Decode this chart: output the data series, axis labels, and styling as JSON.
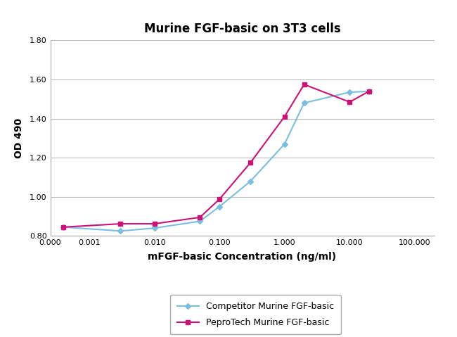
{
  "title": "Murine FGF-basic on 3T3 cells",
  "xlabel": "mFGF-basic Concentration (ng/ml)",
  "ylabel": "OD 490",
  "ylim": [
    0.8,
    1.8
  ],
  "yticks": [
    0.8,
    1.0,
    1.2,
    1.4,
    1.6,
    1.8
  ],
  "competitor_x": [
    0.0004,
    0.003,
    0.01,
    0.05,
    0.1,
    0.3,
    1.0,
    2.0,
    10.0,
    20.0
  ],
  "competitor_y": [
    0.845,
    0.825,
    0.84,
    0.875,
    0.95,
    1.08,
    1.27,
    1.48,
    1.535,
    1.54
  ],
  "pepro_x": [
    0.0004,
    0.003,
    0.01,
    0.05,
    0.1,
    0.3,
    1.0,
    2.0,
    10.0,
    20.0
  ],
  "pepro_y": [
    0.845,
    0.862,
    0.862,
    0.895,
    0.988,
    1.175,
    1.41,
    1.575,
    1.485,
    1.54
  ],
  "competitor_color": "#7ABFDF",
  "pepro_color": "#CC1177",
  "competitor_label": "Competitor Murine FGF-basic",
  "pepro_label": "PeproTech Murine FGF-basic",
  "background_color": "#FFFFFF",
  "grid_color": "#BBBBBB",
  "title_fontsize": 12,
  "label_fontsize": 10,
  "legend_fontsize": 9,
  "tick_fontsize": 8,
  "xlim_left": 0.00025,
  "xlim_right": 200.0,
  "xtick_vals": [
    0.00025,
    0.001,
    0.01,
    0.1,
    1.0,
    10.0,
    100.0
  ],
  "xtick_labels": [
    "0.000",
    "0.001",
    "0.010",
    "0.100",
    "1.000",
    "10.000",
    "100.000"
  ]
}
